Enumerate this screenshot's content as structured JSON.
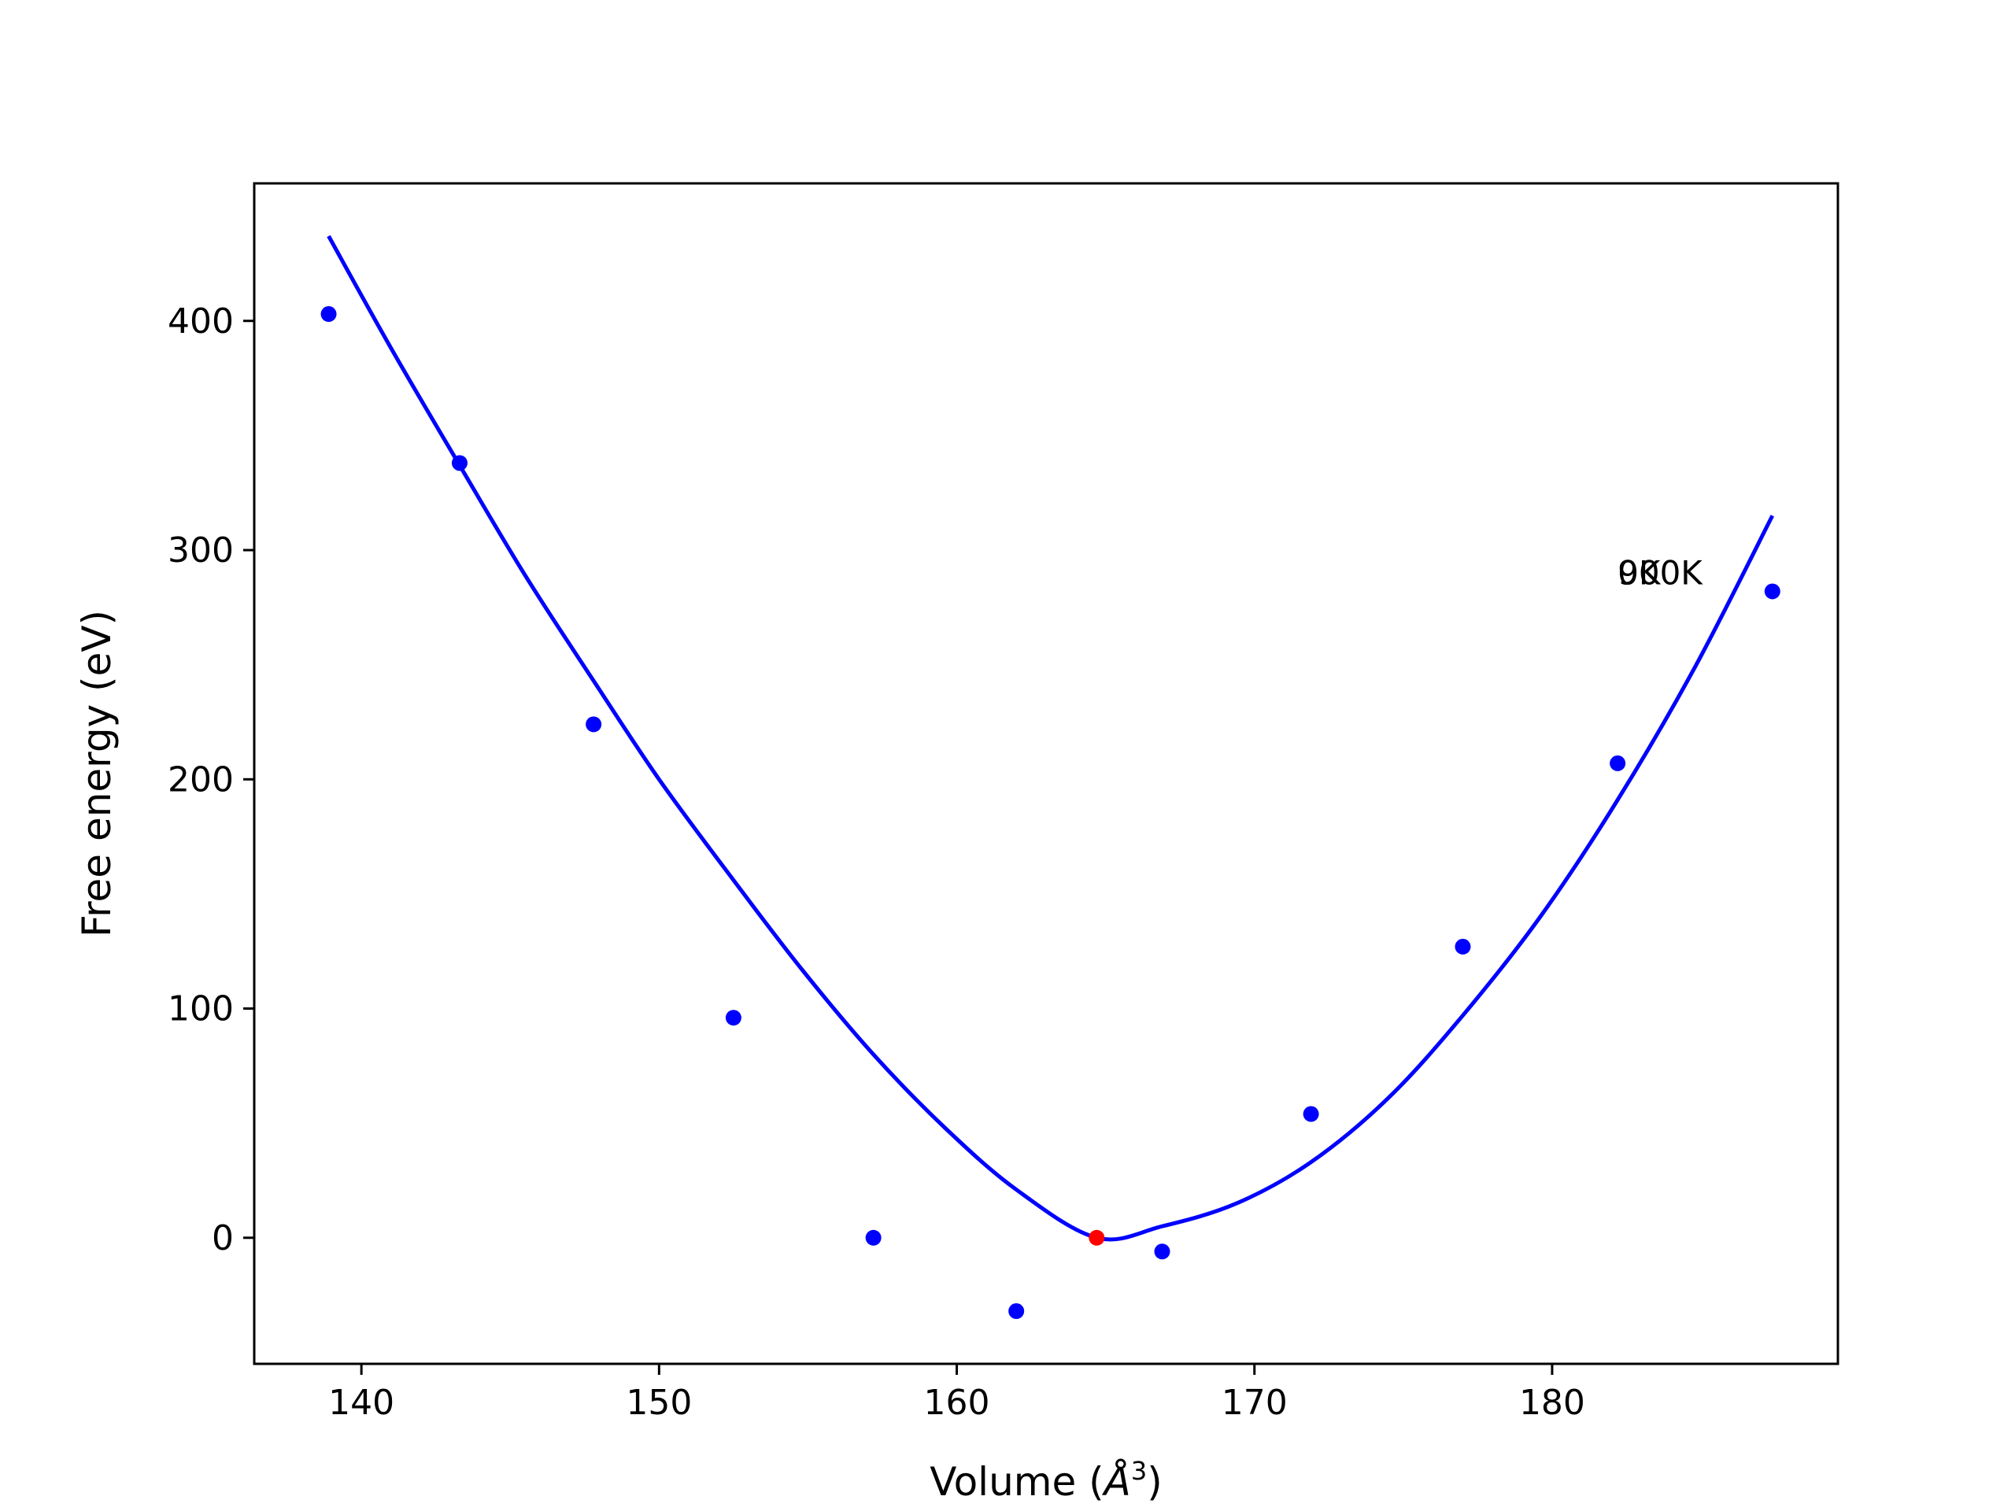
{
  "chart_data": {
    "type": "scatter",
    "xlabel": "Volume (",
    "xlabel_unit": "Å",
    "xlabel_exp": "3",
    "xlabel_close": ")",
    "ylabel": "Free energy (eV)",
    "xlim": [
      136.4,
      189.6
    ],
    "ylim": [
      -55,
      460
    ],
    "grid": false,
    "xticks": [
      140,
      150,
      160,
      170,
      180
    ],
    "yticks": [
      0,
      100,
      200,
      300,
      400
    ],
    "annotations": [
      {
        "text": "0K",
        "x": 182.2,
        "y": 285
      },
      {
        "text": "900K",
        "x": 182.2,
        "y": 285
      }
    ],
    "points": {
      "color": "#0000ff",
      "x": [
        138.9,
        143.3,
        147.8,
        152.5,
        157.2,
        162.0,
        166.9,
        171.9,
        177.0,
        182.2,
        187.4
      ],
      "y": [
        403,
        338,
        224,
        96,
        0,
        -32,
        -6,
        54,
        127,
        207,
        282
      ]
    },
    "minimum": {
      "color": "#ff0000",
      "x": 164.7,
      "y": 0
    },
    "fit_curve": {
      "color": "#0000ff",
      "x": [
        138.9,
        141.0,
        143.3,
        145.5,
        147.8,
        150.0,
        152.5,
        154.8,
        157.2,
        159.6,
        162.0,
        164.7,
        166.9,
        169.4,
        171.9,
        174.5,
        177.0,
        179.6,
        182.2,
        184.8,
        187.4
      ],
      "y": [
        437,
        388,
        337,
        289,
        243,
        200,
        156,
        117,
        80,
        48,
        21,
        0,
        5,
        15,
        33,
        61,
        97,
        140,
        191,
        249,
        315
      ]
    }
  }
}
